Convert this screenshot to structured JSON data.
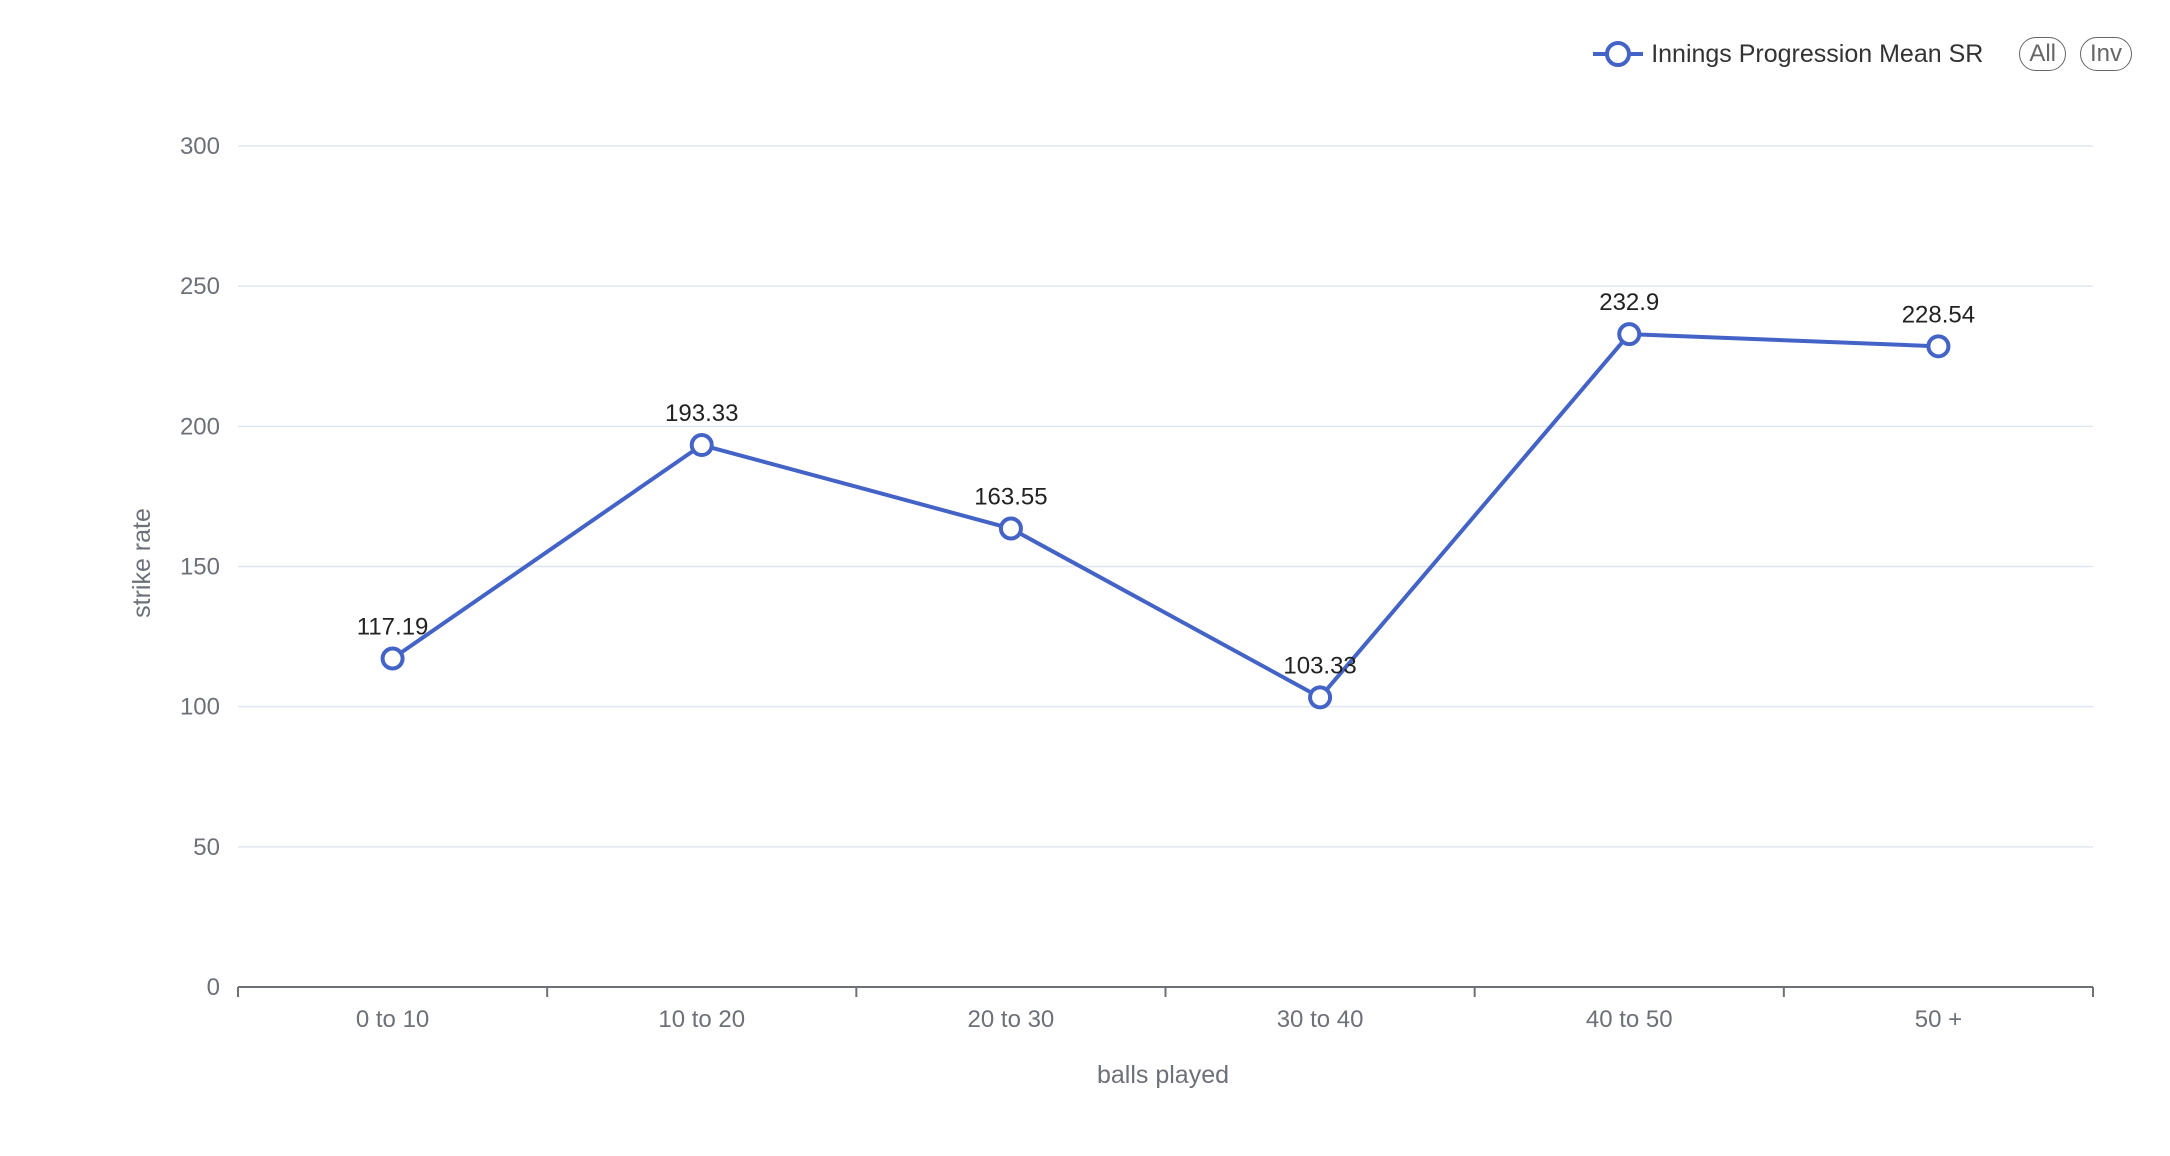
{
  "legend": {
    "series_label": "Innings Progression Mean SR",
    "all_label": "All",
    "inv_label": "Inv"
  },
  "colors": {
    "series": "#4363c6",
    "grid": "#e0e6f1",
    "axis": "#6e7079"
  },
  "chart_data": {
    "type": "line",
    "categories": [
      "0 to 10",
      "10 to 20",
      "20 to 30",
      "30 to 40",
      "40 to 50",
      "50 +"
    ],
    "series": [
      {
        "name": "Innings Progression Mean SR",
        "values": [
          117.19,
          193.33,
          163.55,
          103.33,
          232.9,
          228.54
        ]
      }
    ],
    "xlabel": "balls played",
    "ylabel": "strike rate",
    "ylim": [
      0,
      300
    ],
    "yticks": [
      0,
      50,
      100,
      150,
      200,
      250,
      300
    ],
    "grid": true,
    "legend_position": "top-right"
  }
}
